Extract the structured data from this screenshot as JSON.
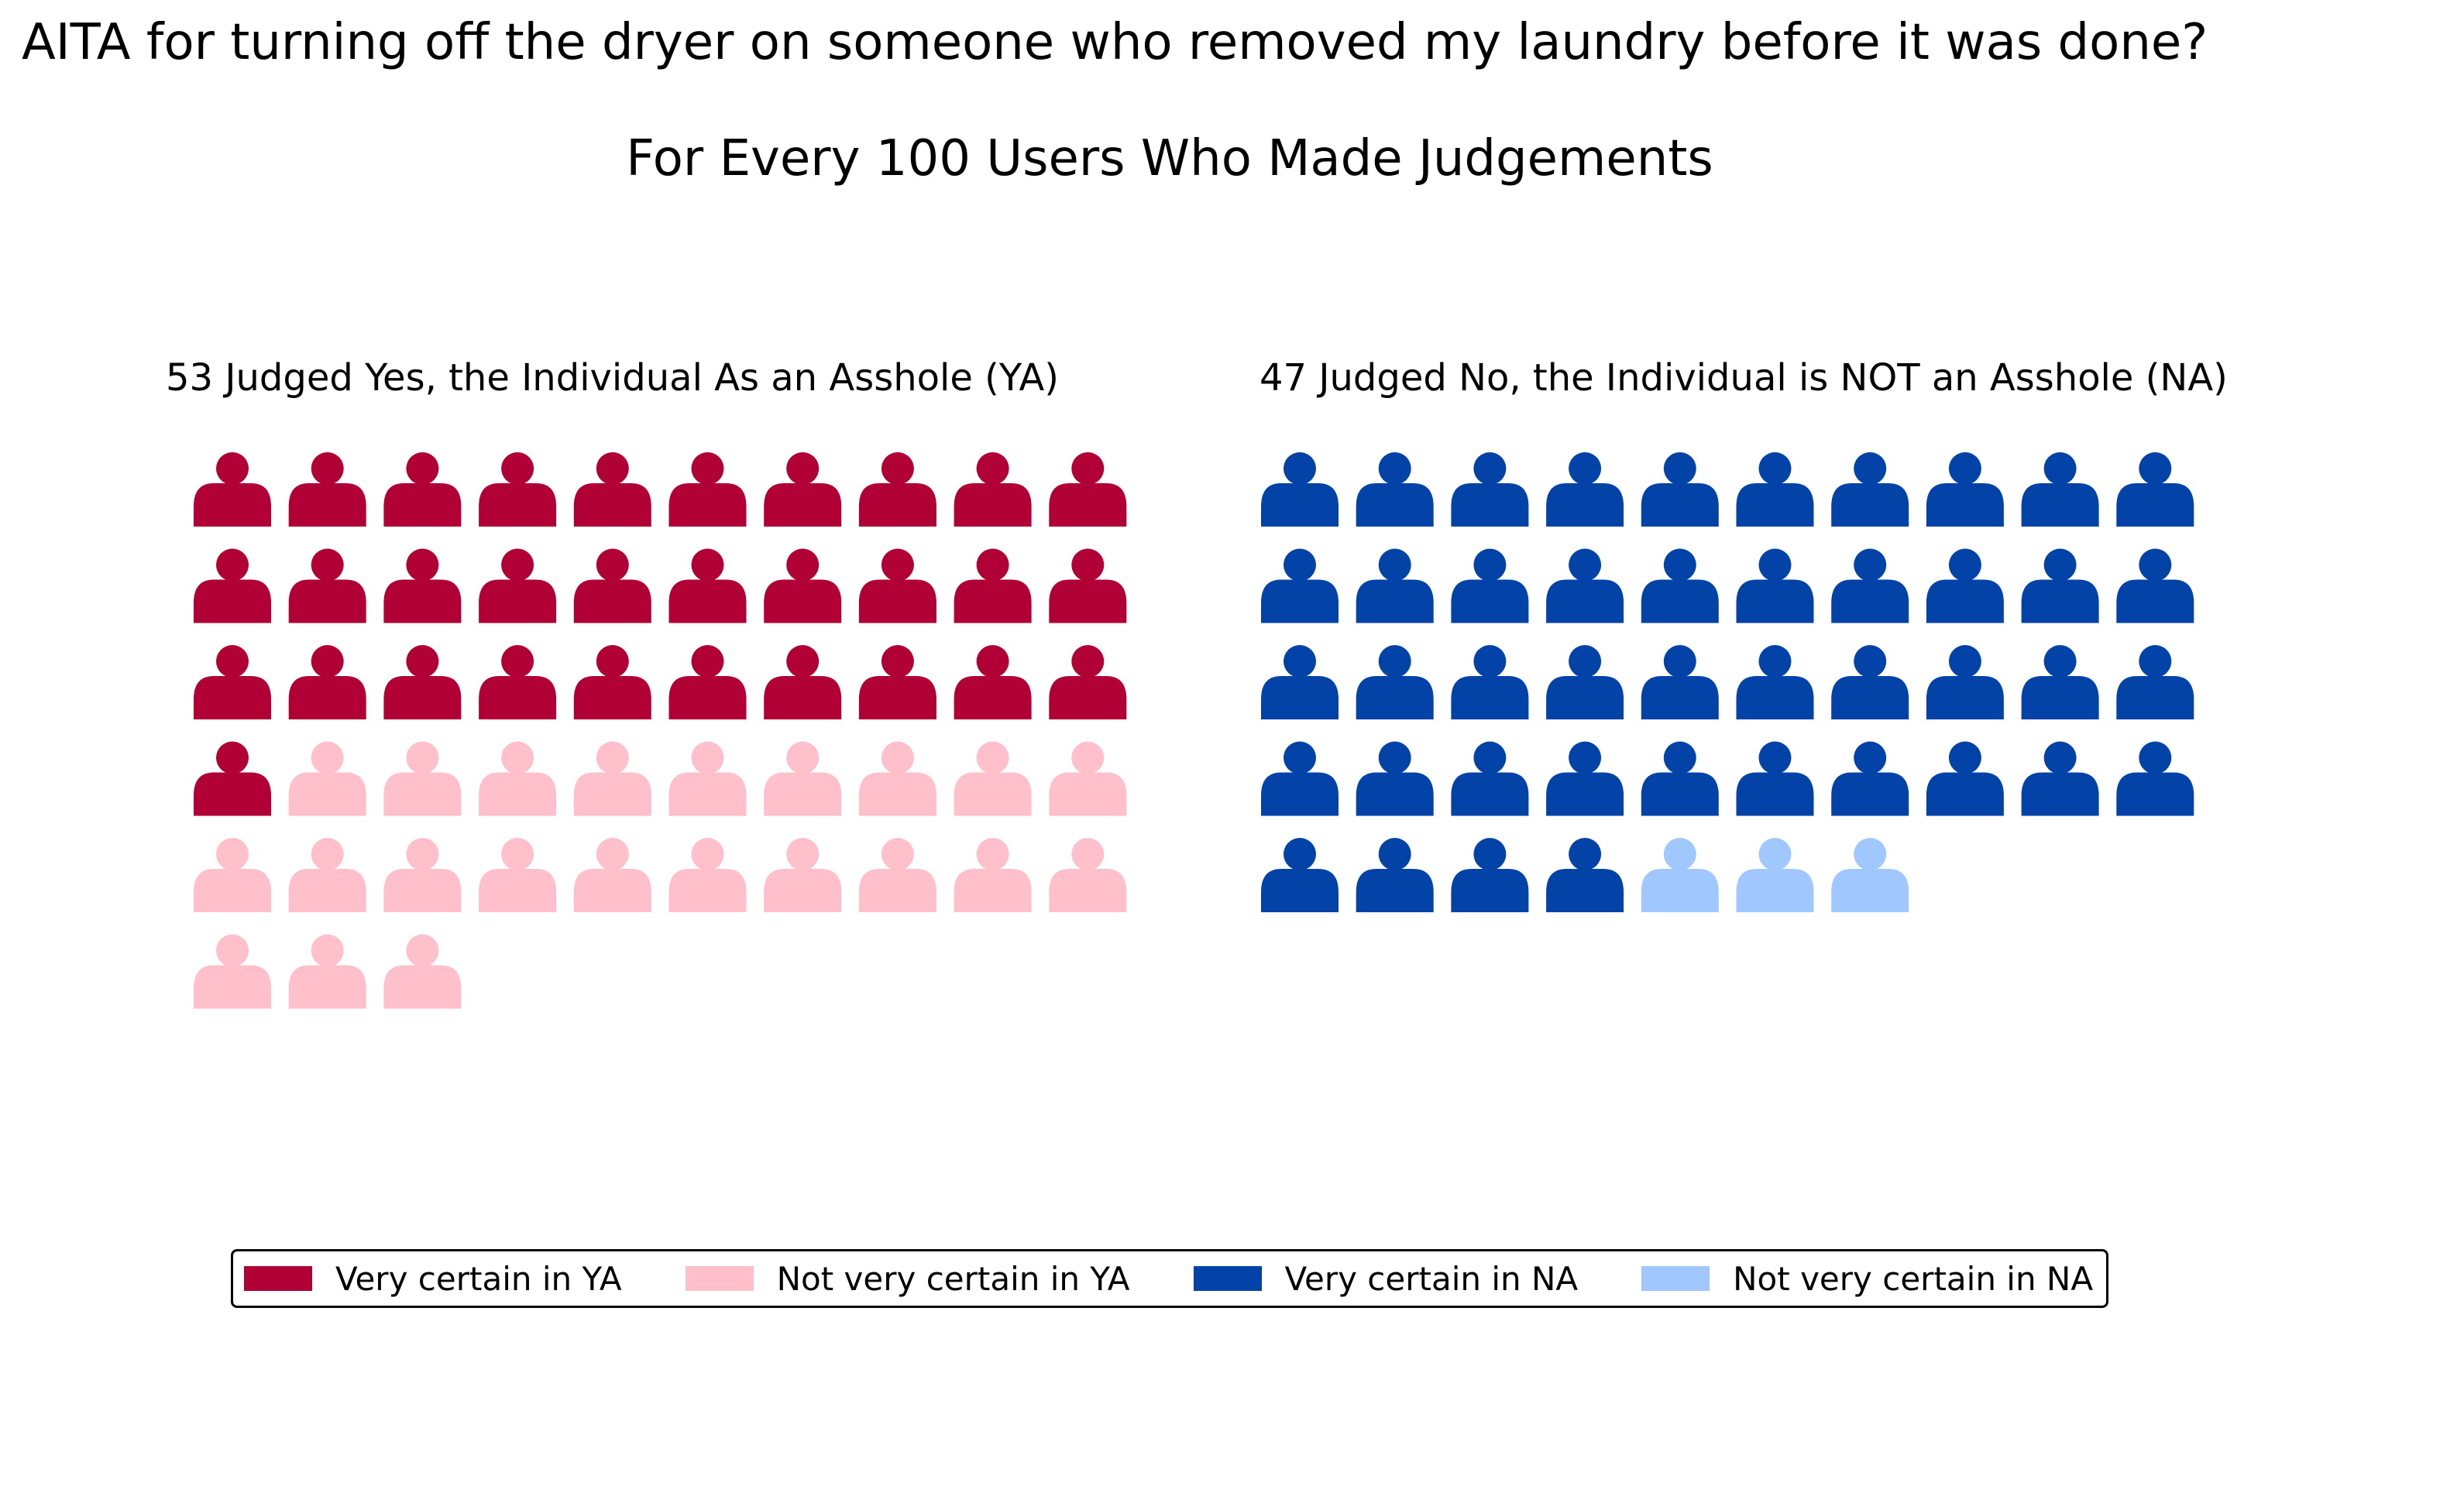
{
  "title": "AITA for turning off the dryer on someone who removed my laundry before it was done?",
  "subtitle": "For Every 100 Users Who Made Judgements",
  "chart_data": {
    "type": "pictogram",
    "unit": 1,
    "columns": 10,
    "panels": [
      {
        "key": "ya",
        "title": "53 Judged Yes, the Individual As an Asshole (YA)",
        "groups": [
          {
            "name": "Very certain in YA",
            "count": 31,
            "color": "#b00035"
          },
          {
            "name": "Not very certain in YA",
            "count": 22,
            "color": "#ffc0cb"
          }
        ]
      },
      {
        "key": "na",
        "title": "47 Judged No, the Individual is NOT an Asshole (NA)",
        "groups": [
          {
            "name": "Very certain in NA",
            "count": 44,
            "color": "#0343a8"
          },
          {
            "name": "Not very certain in NA",
            "count": 3,
            "color": "#a0c8ff"
          }
        ]
      }
    ],
    "legend": {
      "position": "bottom-center",
      "items": [
        {
          "label": "Very certain in YA",
          "color": "#b00035"
        },
        {
          "label": "Not very certain in YA",
          "color": "#ffc0cb"
        },
        {
          "label": "Very certain in NA",
          "color": "#0343a8"
        },
        {
          "label": "Not very certain in NA",
          "color": "#a0c8ff"
        }
      ]
    }
  }
}
